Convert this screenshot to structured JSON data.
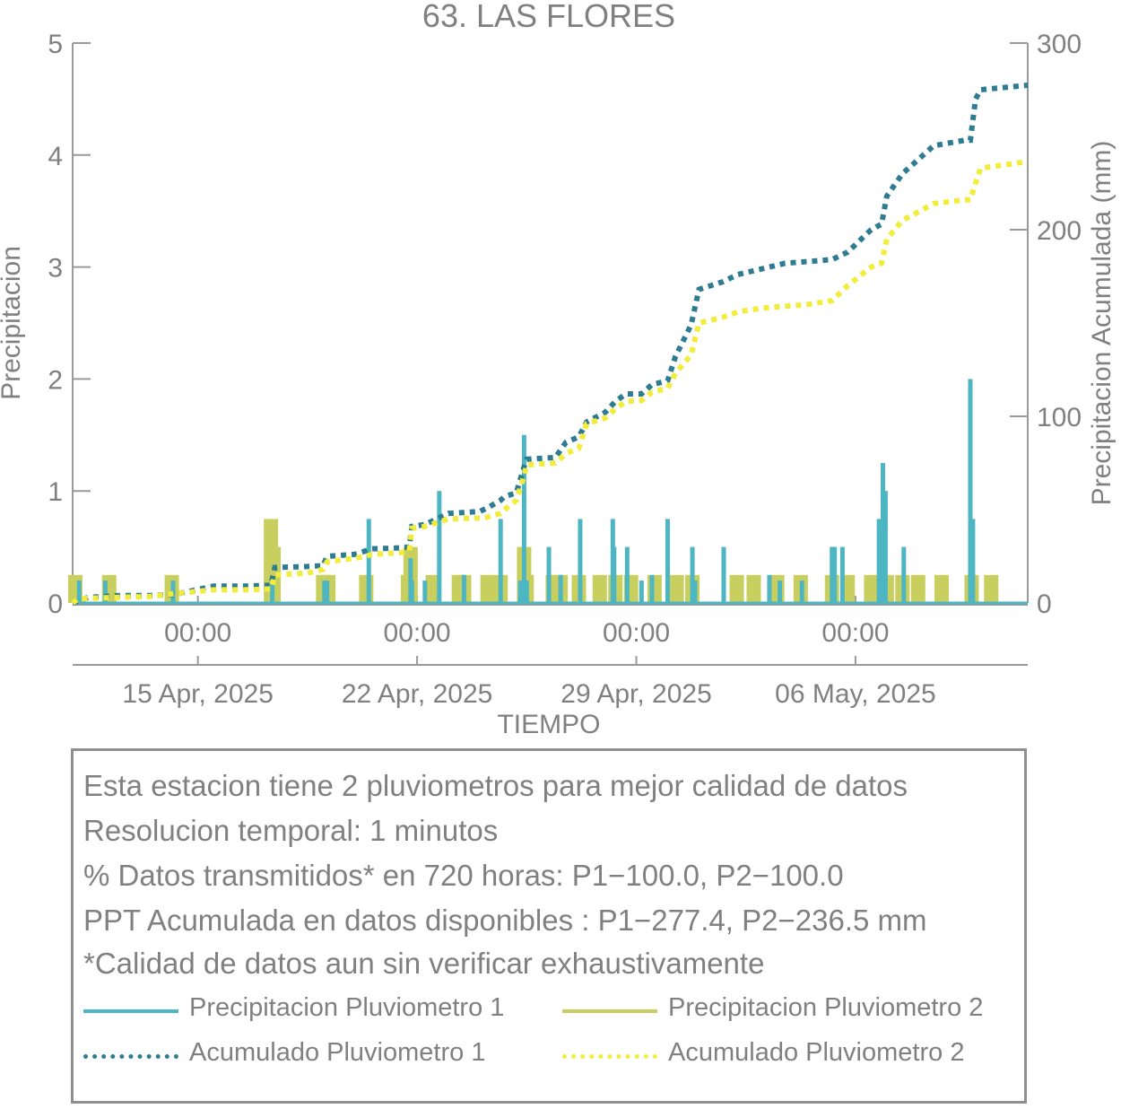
{
  "chart_data": {
    "type": "bar",
    "title": "63. LAS FLORES",
    "xlabel": "TIEMPO",
    "ylabel": "Precipitacion",
    "y2label": "Precipitacion Acumulada (mm)",
    "ylim": [
      0,
      5
    ],
    "y2lim": [
      0,
      300
    ],
    "yticks": [
      0,
      1,
      2,
      3,
      4,
      5
    ],
    "y2ticks": [
      0,
      100,
      200,
      300
    ],
    "xrange": [
      "2025-04-11T00:00",
      "2025-05-11T12:00"
    ],
    "xticks": [
      "2025-04-15T00:00",
      "2025-04-22T00:00",
      "2025-04-29T00:00",
      "2025-05-06T00:00"
    ],
    "xtick_time_labels": [
      "00:00",
      "00:00",
      "00:00",
      "00:00"
    ],
    "xtick_date_labels": [
      "15 Apr, 2025",
      "22 Apr, 2025",
      "29 Apr, 2025",
      "06 May, 2025"
    ],
    "grid": false,
    "series": [
      {
        "name": "Precipitacion Pluviometro 1",
        "style": "bar",
        "axis": "left",
        "color": "#4db6c2",
        "x": [
          "2025-04-11T05",
          "2025-04-12T01",
          "2025-04-14T05",
          "2025-04-17T09",
          "2025-04-19T01",
          "2025-04-19T03",
          "2025-04-20T11",
          "2025-04-21T19",
          "2025-04-21T20",
          "2025-04-22T06",
          "2025-04-22T17",
          "2025-04-23T12",
          "2025-04-24T16",
          "2025-04-25T07",
          "2025-04-25T10",
          "2025-04-25T12",
          "2025-04-26T05",
          "2025-04-26T14",
          "2025-04-27T05",
          "2025-04-28T06",
          "2025-04-28T07",
          "2025-04-28T17",
          "2025-04-29T04",
          "2025-04-29T12",
          "2025-04-30T00",
          "2025-04-30T19",
          "2025-04-30T21",
          "2025-05-01T19",
          "2025-05-03T06",
          "2025-05-03T14",
          "2025-05-04T07",
          "2025-05-05T06",
          "2025-05-05T08",
          "2025-05-05T14",
          "2025-05-06T18",
          "2025-05-06T21",
          "2025-05-06T23",
          "2025-05-07T13",
          "2025-05-09T16",
          "2025-05-09T18"
        ],
        "values": [
          0.2,
          0.2,
          0.2,
          0.2,
          0.2,
          0.2,
          0.75,
          0.4,
          0.2,
          0.2,
          1.0,
          0.25,
          0.75,
          0.2,
          1.5,
          0.2,
          0.5,
          0.25,
          0.75,
          0.75,
          0.5,
          0.5,
          0.2,
          0.25,
          0.75,
          0.5,
          0.2,
          0.5,
          0.25,
          0.2,
          0.2,
          0.5,
          0.5,
          0.5,
          0.75,
          1.25,
          1.0,
          0.5,
          2.0,
          0.75
        ]
      },
      {
        "name": "Precipitacion Pluviometro 2",
        "style": "bar",
        "axis": "left",
        "color": "#c8cf5e",
        "x": [
          "2025-04-11T02",
          "2025-04-12T04",
          "2025-04-14T04",
          "2025-04-17T08",
          "2025-04-17T10",
          "2025-04-19T00",
          "2025-04-19T04",
          "2025-04-20T09",
          "2025-04-21T17",
          "2025-04-21T19",
          "2025-04-22T12",
          "2025-04-23T08",
          "2025-04-23T12",
          "2025-04-24T06",
          "2025-04-24T16",
          "2025-04-25T10",
          "2025-04-25T12",
          "2025-04-26T08",
          "2025-04-26T14",
          "2025-04-27T04",
          "2025-04-27T20",
          "2025-04-28T08",
          "2025-04-28T20",
          "2025-04-29T14",
          "2025-04-30T07",
          "2025-04-30T19",
          "2025-05-02T05",
          "2025-05-02T18",
          "2025-05-03T12",
          "2025-05-04T06",
          "2025-05-05T06",
          "2025-05-05T18",
          "2025-05-06T12",
          "2025-05-07T00",
          "2025-05-07T12",
          "2025-05-08T00",
          "2025-05-08T18",
          "2025-05-09T17",
          "2025-05-10T08"
        ],
        "values": [
          0.25,
          0.25,
          0.25,
          0.75,
          0.5,
          0.25,
          0.25,
          0.25,
          0.25,
          0.5,
          0.25,
          0.25,
          0.25,
          0.25,
          0.25,
          0.5,
          0.25,
          0.25,
          0.25,
          0.25,
          0.25,
          0.25,
          0.25,
          0.25,
          0.25,
          0.25,
          0.25,
          0.25,
          0.25,
          0.25,
          0.25,
          0.25,
          0.25,
          0.25,
          0.25,
          0.25,
          0.25,
          0.25,
          0.25
        ]
      },
      {
        "name": "Acumulado Pluviometro 1",
        "style": "dotted-line",
        "axis": "right",
        "color": "#2e7c91",
        "x": [
          "2025-04-11T00",
          "2025-04-11T02",
          "2025-04-11T12",
          "2025-04-12T12",
          "2025-04-13T12",
          "2025-04-14T06",
          "2025-04-15T12",
          "2025-04-16T12",
          "2025-04-17T08",
          "2025-04-17T11",
          "2025-04-18T12",
          "2025-04-19T00",
          "2025-04-19T03",
          "2025-04-20T00",
          "2025-04-20T09",
          "2025-04-20T13",
          "2025-04-21T12",
          "2025-04-21T18",
          "2025-04-21T20",
          "2025-04-22T06",
          "2025-04-23T00",
          "2025-04-24T00",
          "2025-04-24T06",
          "2025-04-24T16",
          "2025-04-24T19",
          "2025-04-25T04",
          "2025-04-25T10",
          "2025-04-25T12",
          "2025-04-26T10",
          "2025-04-26T18",
          "2025-04-27T04",
          "2025-04-27T10",
          "2025-04-28T00",
          "2025-04-28T08",
          "2025-04-28T16",
          "2025-04-29T04",
          "2025-04-29T12",
          "2025-04-30T00",
          "2025-04-30T06",
          "2025-04-30T18",
          "2025-05-01T00",
          "2025-05-01T18",
          "2025-05-02T06",
          "2025-05-03T00",
          "2025-05-03T18",
          "2025-05-04T12",
          "2025-05-05T06",
          "2025-05-05T18",
          "2025-05-06T12",
          "2025-05-06T20",
          "2025-05-07T00",
          "2025-05-07T12",
          "2025-05-08T12",
          "2025-05-09T12",
          "2025-05-09T16",
          "2025-05-09T20",
          "2025-05-10T00",
          "2025-05-11T12"
        ],
        "values": [
          0,
          0.5,
          3,
          4,
          4,
          4.5,
          9,
          9,
          9.5,
          19,
          19.5,
          20,
          25,
          26,
          28,
          29,
          29.5,
          30,
          41,
          42,
          48,
          49,
          51,
          55,
          57,
          59,
          73,
          77,
          78,
          86,
          89,
          97,
          102,
          108,
          112,
          112,
          117,
          119,
          132,
          149,
          168,
          172,
          176,
          179,
          182,
          183,
          184,
          188,
          200,
          203,
          218,
          230,
          245,
          248,
          248,
          270,
          275,
          277.4
        ]
      },
      {
        "name": "Acumulado Pluviometro 2",
        "style": "dotted-line",
        "axis": "right",
        "color": "#f2ec3a",
        "x": [
          "2025-04-11T00",
          "2025-04-11T04",
          "2025-04-11T12",
          "2025-04-12T12",
          "2025-04-13T12",
          "2025-04-14T06",
          "2025-04-15T12",
          "2025-04-16T12",
          "2025-04-17T08",
          "2025-04-17T11",
          "2025-04-18T12",
          "2025-04-19T00",
          "2025-04-19T03",
          "2025-04-20T00",
          "2025-04-20T09",
          "2025-04-20T13",
          "2025-04-21T12",
          "2025-04-21T18",
          "2025-04-21T20",
          "2025-04-22T06",
          "2025-04-23T00",
          "2025-04-24T00",
          "2025-04-24T06",
          "2025-04-24T16",
          "2025-04-24T19",
          "2025-04-25T04",
          "2025-04-25T10",
          "2025-04-25T12",
          "2025-04-26T10",
          "2025-04-26T18",
          "2025-04-27T04",
          "2025-04-27T10",
          "2025-04-28T00",
          "2025-04-28T08",
          "2025-04-28T16",
          "2025-04-29T04",
          "2025-04-29T12",
          "2025-04-30T00",
          "2025-04-30T06",
          "2025-04-30T18",
          "2025-05-01T00",
          "2025-05-01T18",
          "2025-05-02T06",
          "2025-05-03T00",
          "2025-05-03T18",
          "2025-05-04T12",
          "2025-05-05T06",
          "2025-05-05T18",
          "2025-05-06T12",
          "2025-05-06T20",
          "2025-05-07T00",
          "2025-05-07T12",
          "2025-05-08T12",
          "2025-05-09T12",
          "2025-05-09T16",
          "2025-05-09T20",
          "2025-05-10T00",
          "2025-05-11T12"
        ],
        "values": [
          0,
          2,
          2.5,
          3,
          3.5,
          5,
          7,
          7,
          7.5,
          15,
          16,
          18,
          22,
          24,
          25,
          26,
          27,
          28,
          40,
          41,
          45,
          45.5,
          46,
          48,
          50,
          55,
          68,
          74,
          75,
          80,
          83,
          96,
          99,
          104,
          108,
          108.5,
          113,
          115,
          123,
          133,
          150,
          153,
          156,
          158,
          159,
          160,
          162,
          170,
          180,
          182,
          195,
          205,
          214,
          216,
          216,
          225,
          233,
          236.5
        ]
      }
    ]
  },
  "notes": {
    "line1": "Esta estacion tiene 2 pluviometros para mejor calidad de datos",
    "line2": "Resolucion temporal: 1 minutos",
    "line3": "% Datos transmitidos* en 720 horas: P1−100.0, P2−100.0",
    "line4": "PPT Acumulada en datos disponibles : P1−277.4, P2−236.5 mm",
    "line5": "*Calidad de datos aun sin verificar exhaustivamente"
  },
  "legend": [
    {
      "label": "Precipitacion Pluviometro 1",
      "color": "#4db6c2",
      "style": "solid"
    },
    {
      "label": "Precipitacion Pluviometro 2",
      "color": "#c8cf5e",
      "style": "solid"
    },
    {
      "label": "Acumulado Pluviometro 1",
      "color": "#2e7c91",
      "style": "dotted"
    },
    {
      "label": "Acumulado Pluviometro 2",
      "color": "#f2ec3a",
      "style": "dotted"
    }
  ]
}
